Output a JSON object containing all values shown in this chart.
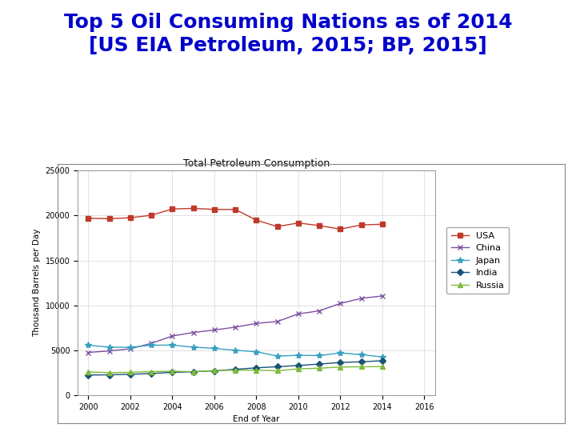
{
  "title_main": "Top 5 Oil Consuming Nations as of 2014\n[US EIA Petroleum, 2015; BP, 2015]",
  "chart_title": "Total Petroleum Consumption",
  "xlabel": "End of Year",
  "ylabel": "Thousand Barrels per Day",
  "years": [
    2000,
    2001,
    2002,
    2003,
    2004,
    2005,
    2006,
    2007,
    2008,
    2009,
    2010,
    2011,
    2012,
    2013,
    2014
  ],
  "USA": [
    19701,
    19649,
    19761,
    20033,
    20731,
    20802,
    20687,
    20680,
    19497,
    18771,
    19180,
    18882,
    18490,
    18961,
    19035
  ],
  "China": [
    4772,
    4930,
    5179,
    5780,
    6596,
    6988,
    7267,
    7583,
    7999,
    8211,
    9057,
    9400,
    10221,
    10786,
    11056
  ],
  "Japan": [
    5577,
    5359,
    5331,
    5577,
    5583,
    5356,
    5222,
    5007,
    4846,
    4363,
    4451,
    4418,
    4714,
    4520,
    4271
  ],
  "India": [
    2254,
    2276,
    2340,
    2420,
    2555,
    2617,
    2722,
    2893,
    3053,
    3182,
    3319,
    3473,
    3652,
    3727,
    3846
  ],
  "Russia": [
    2608,
    2512,
    2559,
    2635,
    2680,
    2628,
    2750,
    2793,
    2797,
    2730,
    2938,
    3016,
    3145,
    3174,
    3196
  ],
  "colors": {
    "USA": "#c0392b",
    "China": "#7b4ea0",
    "Japan": "#38a0c0",
    "India": "#1a5276",
    "Russia": "#7dba3a"
  },
  "markers": {
    "USA": "s",
    "China": "x",
    "Japan": "*",
    "India": "D",
    "Russia": "^"
  },
  "ylim": [
    0,
    25000
  ],
  "xlim": [
    1999.5,
    2016.5
  ],
  "yticks": [
    0,
    5000,
    10000,
    15000,
    20000,
    25000
  ],
  "xticks": [
    2000,
    2002,
    2004,
    2006,
    2008,
    2010,
    2012,
    2014,
    2016
  ],
  "background_color": "#ffffff",
  "plot_bg_color": "#ffffff",
  "grid_color": "#cccccc",
  "title_color": "#0000cc",
  "title_fontsize": 18,
  "chart_title_fontsize": 9,
  "axis_label_fontsize": 7.5,
  "tick_fontsize": 7,
  "legend_fontsize": 8
}
